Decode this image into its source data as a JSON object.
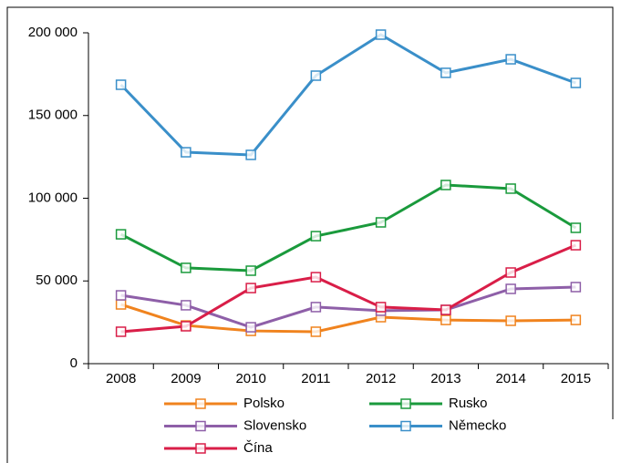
{
  "chart_data": {
    "type": "line",
    "categories": [
      "2008",
      "2009",
      "2010",
      "2011",
      "2012",
      "2013",
      "2014",
      "2015"
    ],
    "series": [
      {
        "name": "Polsko",
        "color": "#f0831e",
        "values": [
          35800,
          23100,
          19800,
          19300,
          28100,
          26400,
          25900,
          26400
        ]
      },
      {
        "name": "Rusko",
        "color": "#1a9a3c",
        "values": [
          78200,
          57900,
          56200,
          77100,
          85400,
          108000,
          105800,
          82100
        ]
      },
      {
        "name": "Slovensko",
        "color": "#8e5fa8",
        "values": [
          41300,
          35300,
          22000,
          34200,
          32000,
          32500,
          45200,
          46300
        ]
      },
      {
        "name": "Německo",
        "color": "#3a8fc9",
        "values": [
          168600,
          127800,
          126200,
          174100,
          198900,
          175800,
          184000,
          169700
        ]
      },
      {
        "name": "Čína",
        "color": "#d91e48",
        "values": [
          19300,
          22600,
          45700,
          52300,
          34200,
          32500,
          55100,
          71600
        ]
      }
    ],
    "ylim": [
      0,
      200000
    ],
    "yticks": [
      0,
      {
        "value": 50000,
        "label": "50 000"
      },
      {
        "value": 100000,
        "label": "100 000"
      },
      {
        "value": 150000,
        "label": "150 000"
      },
      {
        "value": 200000,
        "label": "200 000"
      }
    ]
  }
}
